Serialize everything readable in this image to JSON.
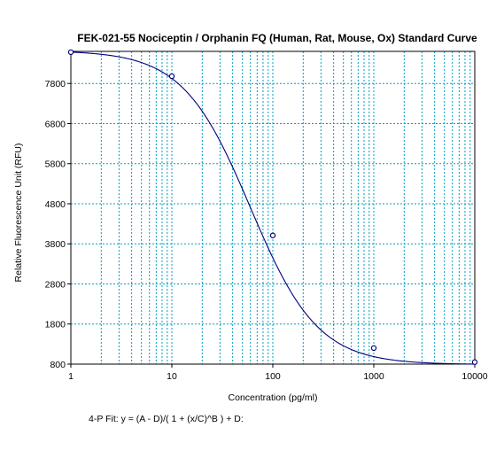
{
  "chart_data": {
    "type": "line",
    "title": "FEK-021-55 Nociceptin / Orphanin FQ (Human, Rat, Mouse, Ox) Standard Curve",
    "xlabel": "Concentration (pg/ml)",
    "ylabel": "Relative Fluorescence Unit (RFU)",
    "x_scale": "log",
    "xlim": [
      1,
      10000
    ],
    "ylim": [
      800,
      8600
    ],
    "x_ticks": [
      1,
      10,
      100,
      1000,
      10000
    ],
    "x_tick_labels": [
      "1",
      "10",
      "100",
      "1000",
      "10000"
    ],
    "y_ticks": [
      800,
      1800,
      2800,
      3800,
      4800,
      5800,
      6800,
      7800
    ],
    "y_tick_labels": [
      "800",
      "1800",
      "2800",
      "3800",
      "4800",
      "5800",
      "6800",
      "7800"
    ],
    "grid": true,
    "series": [
      {
        "kind": "points",
        "color": "#000080",
        "x": [
          1,
          10,
          100,
          1000,
          10000
        ],
        "y": [
          8580,
          7980,
          4010,
          1200,
          850
        ]
      },
      {
        "kind": "fit-curve",
        "color": "#000080",
        "model": "4PL",
        "params": {
          "A": 8620,
          "B": 1.3,
          "C": 60,
          "D": 790
        }
      }
    ],
    "annotation": "4-P Fit: y = (A - D)/( 1 + (x/C)^B ) + D:"
  },
  "colors": {
    "grid": "#00a0c0",
    "series": "#000080",
    "axis": "#000000"
  }
}
